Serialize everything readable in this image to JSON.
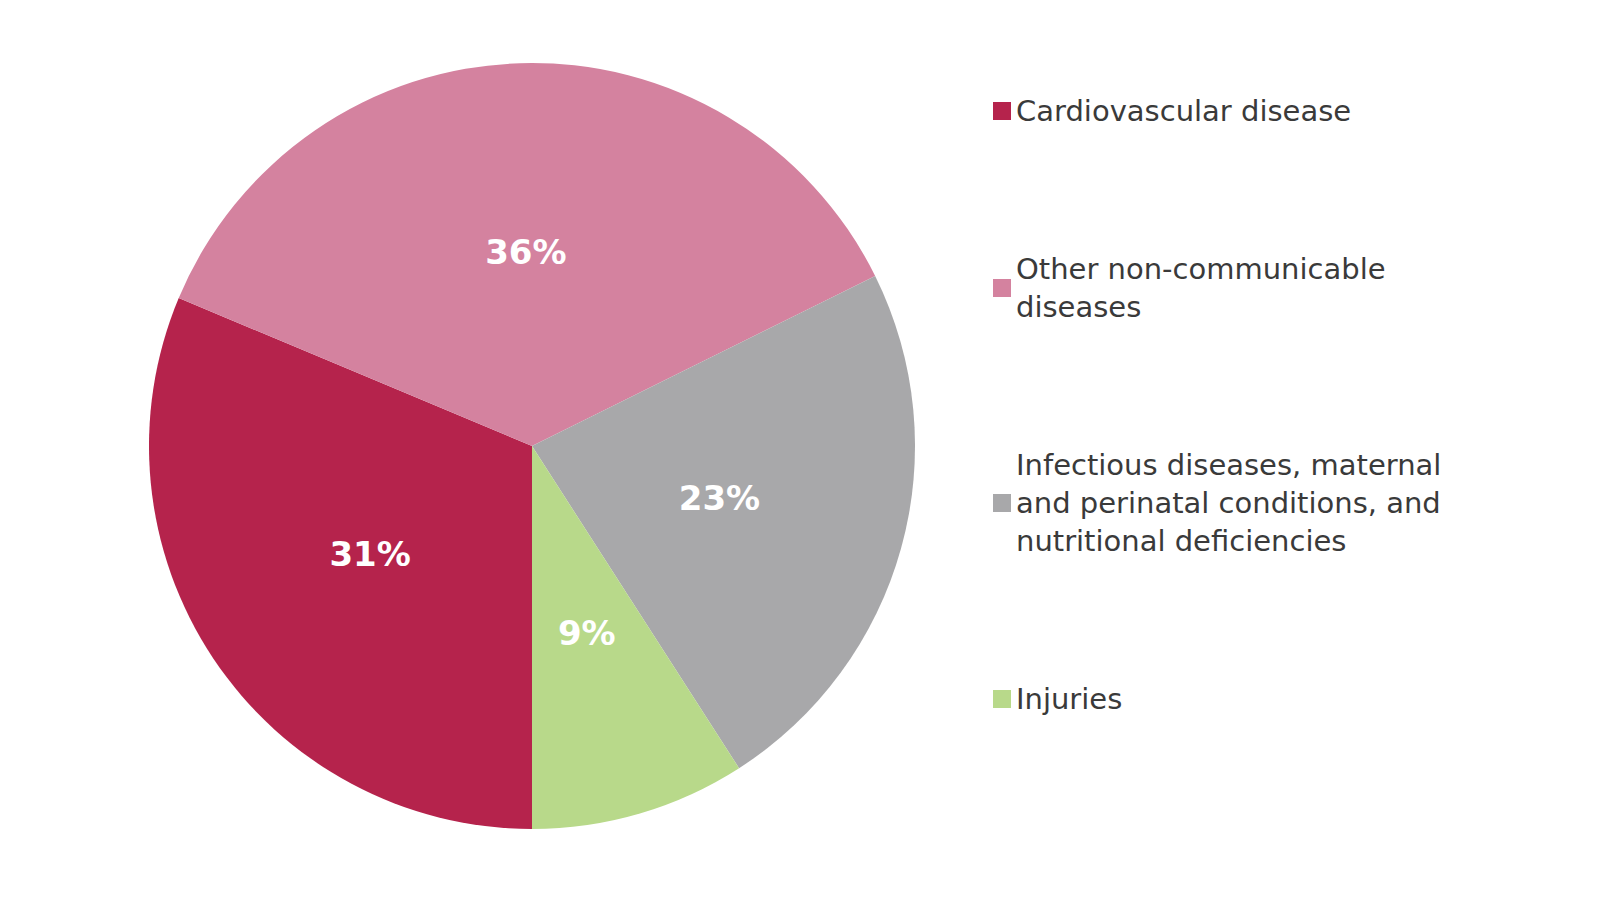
{
  "chart_data": {
    "type": "pie",
    "categories": [
      "Cardiovascular disease",
      "Other non-communicable diseases",
      "Infectious diseases, maternal and perinatal conditions, and nutritional deficiencies",
      "Injuries"
    ],
    "values": [
      31,
      36,
      23,
      9
    ],
    "value_labels": [
      "31%",
      "36%",
      "23%",
      "9%"
    ],
    "colors": [
      "#b5234c",
      "#d4829f",
      "#a8a8aa",
      "#b8d98a"
    ],
    "data_labels": true,
    "legend": "right"
  }
}
